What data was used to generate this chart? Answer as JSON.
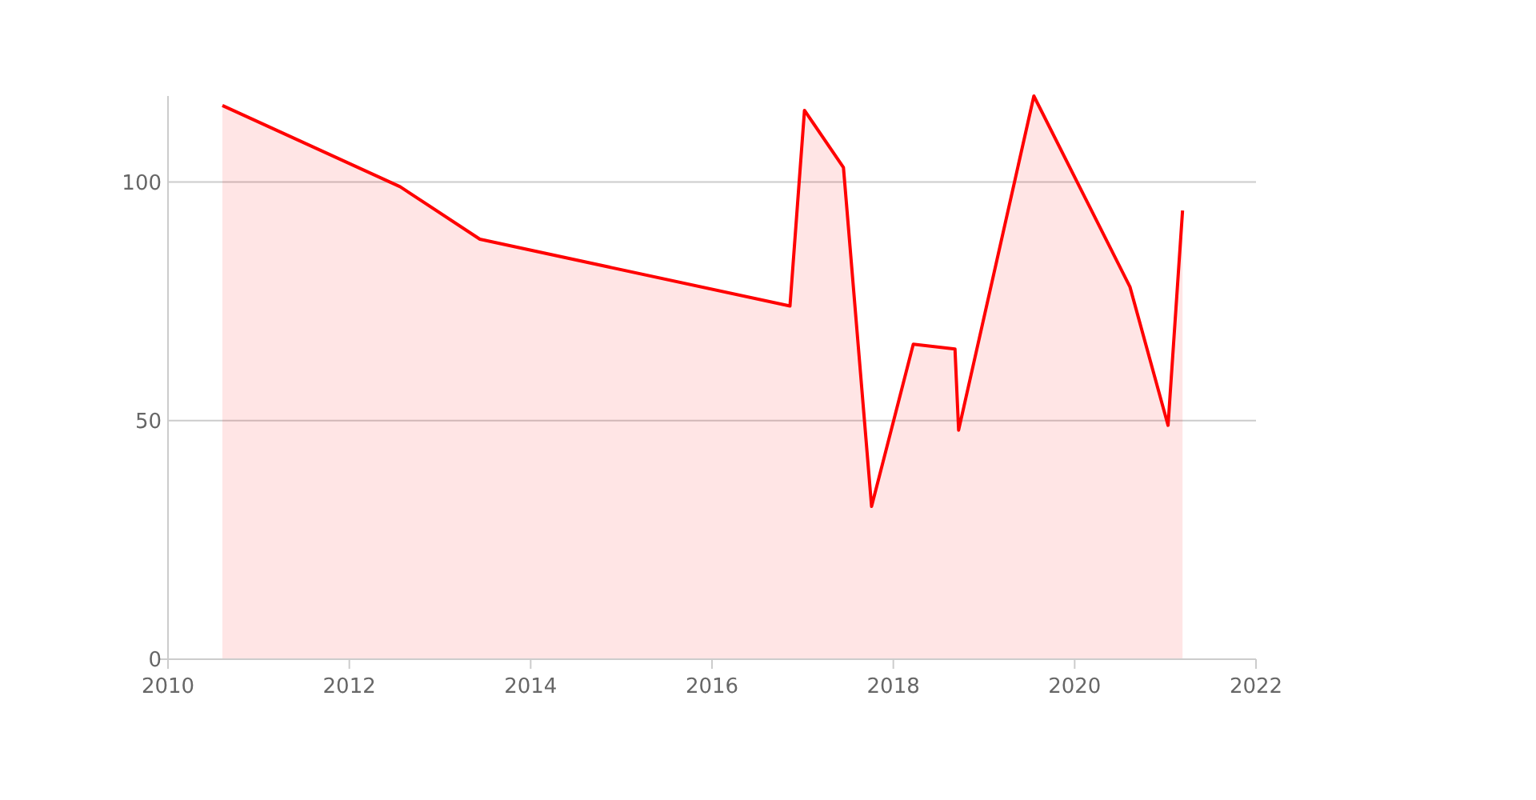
{
  "chart_data": {
    "type": "area",
    "x": [
      2010.6,
      2012.56,
      2013.44,
      2016.86,
      2017.02,
      2017.45,
      2017.76,
      2018.22,
      2018.68,
      2018.72,
      2019.55,
      2020.61,
      2021.03,
      2021.19
    ],
    "series": [
      {
        "color": "#ff0000",
        "values": [
          116,
          99,
          88,
          74,
          115,
          103,
          32,
          66,
          65,
          48,
          118,
          78,
          49,
          94
        ]
      }
    ],
    "xlim": [
      2010,
      2022
    ],
    "xticks": [
      2010,
      2012,
      2014,
      2016,
      2018,
      2020,
      2022
    ],
    "ylim": [
      0,
      118
    ],
    "yticks": [
      0,
      50,
      100
    ],
    "grid": "y"
  }
}
